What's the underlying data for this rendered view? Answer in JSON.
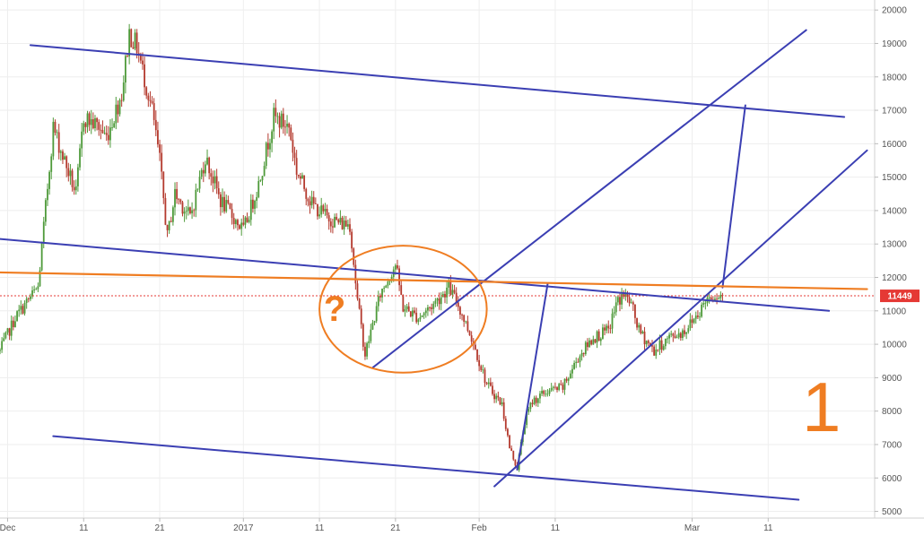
{
  "chart_data": {
    "type": "candlestick",
    "title": "",
    "xlabel": "",
    "ylabel": "",
    "ylim": [
      4800,
      20300
    ],
    "xlim": [
      "2017-11-30",
      "2018-03-25"
    ],
    "grid": true,
    "y_ticks": [
      5000,
      6000,
      7000,
      8000,
      9000,
      10000,
      11000,
      12000,
      13000,
      14000,
      15000,
      16000,
      17000,
      18000,
      19000,
      20000
    ],
    "x_ticks": [
      {
        "date": "2017-12-01",
        "label": "Dec"
      },
      {
        "date": "2017-12-11",
        "label": "11"
      },
      {
        "date": "2017-12-21",
        "label": "21"
      },
      {
        "date": "2018-01-01",
        "label": "2017"
      },
      {
        "date": "2018-01-11",
        "label": "11"
      },
      {
        "date": "2018-01-21",
        "label": "21"
      },
      {
        "date": "2018-02-01",
        "label": "Feb"
      },
      {
        "date": "2018-02-11",
        "label": "11"
      },
      {
        "date": "2018-03-01",
        "label": "Mar"
      },
      {
        "date": "2018-03-11",
        "label": "11"
      }
    ],
    "last_price": 11449,
    "last_price_label": "11449",
    "colors": {
      "up": "#4e9a3a",
      "down": "#b43a2e",
      "lines": "#3b3fb3",
      "orange": "#ef7d22",
      "price_tag": "#e53935"
    },
    "close_path": [
      [
        "2017-11-30",
        9800
      ],
      [
        "2017-12-02",
        10800
      ],
      [
        "2017-12-05",
        11700
      ],
      [
        "2017-12-07",
        16500
      ],
      [
        "2017-12-08",
        15800
      ],
      [
        "2017-12-10",
        14500
      ],
      [
        "2017-12-11",
        16800
      ],
      [
        "2017-12-13",
        16500
      ],
      [
        "2017-12-14",
        16200
      ],
      [
        "2017-12-16",
        17500
      ],
      [
        "2017-12-17",
        19300
      ],
      [
        "2017-12-18",
        18900
      ],
      [
        "2017-12-20",
        17000
      ],
      [
        "2017-12-21",
        15500
      ],
      [
        "2017-12-22",
        13200
      ],
      [
        "2017-12-23",
        14500
      ],
      [
        "2017-12-25",
        13800
      ],
      [
        "2017-12-27",
        15600
      ],
      [
        "2017-12-29",
        14300
      ],
      [
        "2017-12-31",
        13700
      ],
      [
        "2018-01-01",
        13400
      ],
      [
        "2018-01-03",
        14800
      ],
      [
        "2018-01-05",
        16800
      ],
      [
        "2018-01-07",
        16500
      ],
      [
        "2018-01-08",
        15200
      ],
      [
        "2018-01-10",
        14200
      ],
      [
        "2018-01-12",
        13800
      ],
      [
        "2018-01-14",
        13600
      ],
      [
        "2018-01-15",
        13600
      ],
      [
        "2018-01-16",
        11300
      ],
      [
        "2018-01-17",
        9700
      ],
      [
        "2018-01-19",
        11500
      ],
      [
        "2018-01-21",
        12400
      ],
      [
        "2018-01-22",
        11100
      ],
      [
        "2018-01-24",
        10800
      ],
      [
        "2018-01-26",
        11200
      ],
      [
        "2018-01-28",
        11700
      ],
      [
        "2018-01-29",
        11300
      ],
      [
        "2018-01-31",
        10200
      ],
      [
        "2018-02-02",
        8800
      ],
      [
        "2018-02-04",
        8200
      ],
      [
        "2018-02-05",
        6900
      ],
      [
        "2018-02-06",
        6300
      ],
      [
        "2018-02-07",
        7700
      ],
      [
        "2018-02-08",
        8300
      ],
      [
        "2018-02-10",
        8600
      ],
      [
        "2018-02-12",
        8700
      ],
      [
        "2018-02-14",
        9600
      ],
      [
        "2018-02-16",
        10200
      ],
      [
        "2018-02-18",
        10400
      ],
      [
        "2018-02-19",
        11200
      ],
      [
        "2018-02-20",
        11500
      ],
      [
        "2018-02-21",
        11200
      ],
      [
        "2018-02-22",
        10400
      ],
      [
        "2018-02-24",
        9800
      ],
      [
        "2018-02-26",
        10200
      ],
      [
        "2018-02-28",
        10400
      ],
      [
        "2018-03-02",
        11000
      ],
      [
        "2018-03-03",
        11400
      ],
      [
        "2018-03-04",
        11500
      ],
      [
        "2018-03-05",
        11449
      ]
    ],
    "trend_lines": [
      {
        "name": "top-channel-line",
        "color": "#3b3fb3",
        "x1": "2017-12-04",
        "y1": 18950,
        "x2": "2018-03-21",
        "y2": 16800
      },
      {
        "name": "upper-descending-line",
        "color": "#3b3fb3",
        "x1": "2017-11-30",
        "y1": 13150,
        "x2": "2018-03-19",
        "y2": 11000
      },
      {
        "name": "bottom-channel-line",
        "color": "#3b3fb3",
        "x1": "2017-12-07",
        "y1": 7250,
        "x2": "2018-03-15",
        "y2": 5350
      },
      {
        "name": "rising-channel-line-upper",
        "color": "#3b3fb3",
        "x1": "2018-01-18",
        "y1": 9300,
        "x2": "2018-03-16",
        "y2": 19400
      },
      {
        "name": "rising-channel-line-lower",
        "color": "#3b3fb3",
        "x1": "2018-02-03",
        "y1": 5750,
        "x2": "2018-03-24",
        "y2": 15800
      },
      {
        "name": "projection-leg-a-up",
        "color": "#3b3fb3",
        "x1": "2018-02-06",
        "y1": 6250,
        "x2": "2018-02-10",
        "y2": 11800
      },
      {
        "name": "projection-leg-b-up",
        "color": "#3b3fb3",
        "x1": "2018-03-05",
        "y1": 11700,
        "x2": "2018-03-08",
        "y2": 17150
      },
      {
        "name": "orange-horizontal-line",
        "color": "#ef7d22",
        "x1": "2017-11-30",
        "y1": 12150,
        "x2": "2018-03-24",
        "y2": 11650
      }
    ],
    "annotations": [
      {
        "name": "question-mark",
        "text": "?",
        "x": "2018-01-13",
        "y": 10700,
        "color": "#ef7d22"
      },
      {
        "name": "wave-number-label",
        "text": "1",
        "x": "2018-03-18",
        "y": 7400,
        "color": "#ef7d22"
      }
    ],
    "ellipse_annotation": {
      "cx": "2018-01-22",
      "cy": 11050,
      "rx_days": 11,
      "ry_value": 1900,
      "color": "#ef7d22"
    }
  }
}
